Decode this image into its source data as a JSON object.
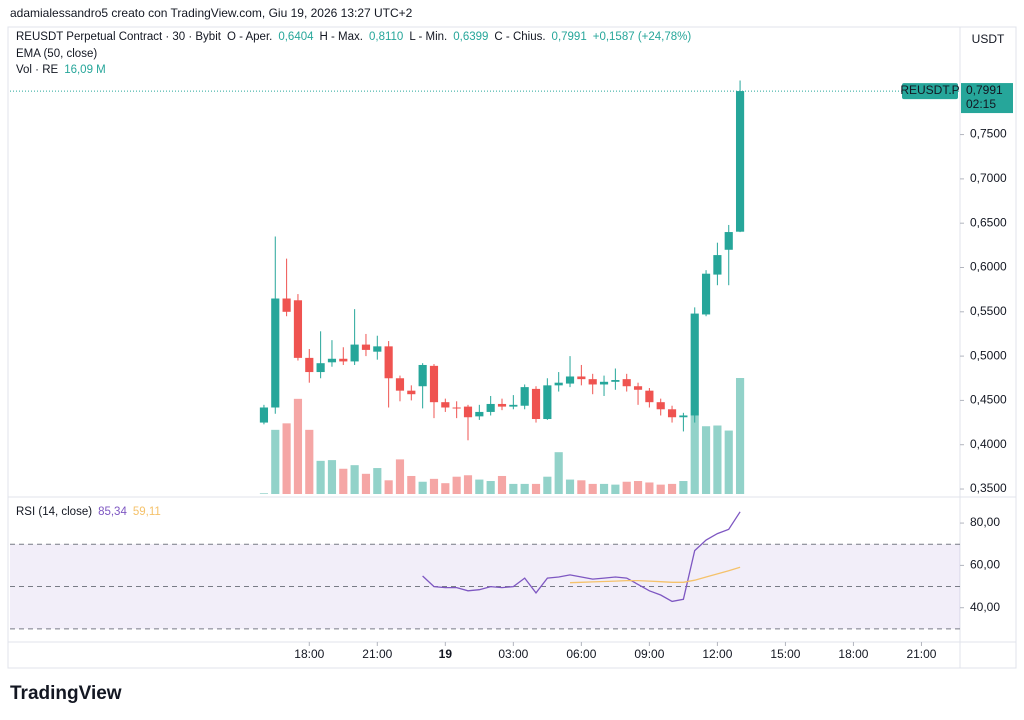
{
  "header": {
    "author_line": "adamialessandro5 creato con TradingView.com, Giu 19, 2026 13:27 UTC+2",
    "brand": "TradingView"
  },
  "chart_data": [
    {
      "type": "candlestick",
      "title": "REUSDT Perpetual Contract · 30 · Bybit",
      "ohlc_legend": [
        {
          "key": "O - Aper.",
          "value": "0,6404"
        },
        {
          "key": "H - Max.",
          "value": "0,8110"
        },
        {
          "key": "L - Min.",
          "value": "0,6399"
        },
        {
          "key": "C - Chius.",
          "value": "0,7991"
        }
      ],
      "change": "+0,1587 (+24,78%)",
      "indicator": "EMA (50, close)",
      "x": [
        16,
        16.5,
        17,
        17.5,
        18,
        18.5,
        19,
        19.5,
        20,
        20.5,
        21,
        21.5,
        22,
        22.5,
        23,
        23.5,
        24,
        24.5,
        25,
        25.5,
        26,
        26.5,
        27,
        27.5,
        28,
        28.5,
        29,
        29.5,
        30,
        30.5,
        31,
        31.5,
        32,
        32.5,
        33,
        33.5,
        34,
        34.5,
        35,
        35.5,
        36,
        36.5,
        37
      ],
      "xlim": [
        4.8,
        46.7
      ],
      "xticks": [
        {
          "value": 18,
          "label": "18:00"
        },
        {
          "value": 21,
          "label": "21:00"
        },
        {
          "value": 24,
          "label": "19"
        },
        {
          "value": 27,
          "label": "03:00"
        },
        {
          "value": 30,
          "label": "06:00"
        },
        {
          "value": 33,
          "label": "09:00"
        },
        {
          "value": 36,
          "label": "12:00"
        },
        {
          "value": 39,
          "label": "15:00"
        },
        {
          "value": 42,
          "label": "18:00"
        },
        {
          "value": 45,
          "label": "21:00"
        }
      ],
      "ylim": [
        0.341,
        0.8714
      ],
      "yticks": [
        {
          "value": 0.35,
          "label": "0,3500"
        },
        {
          "value": 0.4,
          "label": "0,4000"
        },
        {
          "value": 0.45,
          "label": "0,4500"
        },
        {
          "value": 0.5,
          "label": "0,5000"
        },
        {
          "value": 0.55,
          "label": "0,5500"
        },
        {
          "value": 0.6,
          "label": "0,6000"
        },
        {
          "value": 0.65,
          "label": "0,6500"
        },
        {
          "value": 0.7,
          "label": "0,7000"
        },
        {
          "value": 0.75,
          "label": "0,7500"
        }
      ],
      "y_unit": "USDT",
      "open": [
        0.425,
        0.442,
        0.565,
        0.563,
        0.498,
        0.482,
        0.493,
        0.497,
        0.494,
        0.513,
        0.505,
        0.511,
        0.475,
        0.461,
        0.466,
        0.489,
        0.448,
        0.442,
        0.443,
        0.432,
        0.437,
        0.446,
        0.443,
        0.444,
        0.463,
        0.429,
        0.467,
        0.469,
        0.477,
        0.474,
        0.468,
        0.471,
        0.474,
        0.466,
        0.461,
        0.448,
        0.44,
        0.431,
        0.433,
        0.547,
        0.592,
        0.62,
        0.6404
      ],
      "high": [
        0.445,
        0.635,
        0.61,
        0.57,
        0.508,
        0.528,
        0.518,
        0.51,
        0.553,
        0.525,
        0.523,
        0.517,
        0.478,
        0.467,
        0.492,
        0.491,
        0.452,
        0.449,
        0.445,
        0.445,
        0.455,
        0.452,
        0.456,
        0.468,
        0.466,
        0.475,
        0.482,
        0.5,
        0.49,
        0.48,
        0.478,
        0.486,
        0.48,
        0.47,
        0.464,
        0.452,
        0.444,
        0.436,
        0.555,
        0.597,
        0.628,
        0.648,
        0.811
      ],
      "low": [
        0.423,
        0.435,
        0.545,
        0.495,
        0.47,
        0.475,
        0.488,
        0.49,
        0.49,
        0.5,
        0.496,
        0.442,
        0.449,
        0.45,
        0.441,
        0.43,
        0.437,
        0.43,
        0.405,
        0.428,
        0.433,
        0.439,
        0.44,
        0.44,
        0.425,
        0.428,
        0.46,
        0.465,
        0.467,
        0.457,
        0.455,
        0.462,
        0.46,
        0.445,
        0.442,
        0.433,
        0.425,
        0.415,
        0.425,
        0.545,
        0.58,
        0.58,
        0.6399
      ],
      "close": [
        0.442,
        0.565,
        0.55,
        0.498,
        0.482,
        0.492,
        0.497,
        0.494,
        0.513,
        0.507,
        0.511,
        0.475,
        0.461,
        0.457,
        0.49,
        0.448,
        0.442,
        0.441,
        0.431,
        0.437,
        0.446,
        0.443,
        0.445,
        0.465,
        0.429,
        0.467,
        0.47,
        0.477,
        0.474,
        0.468,
        0.471,
        0.473,
        0.466,
        0.462,
        0.448,
        0.44,
        0.431,
        0.433,
        0.548,
        0.593,
        0.614,
        0.64,
        0.7991
      ],
      "up_color": "#26a69a",
      "down_color": "#ef5350",
      "volume": {
        "name": "Vol · RE",
        "value_label": "16,09 M",
        "up_color": "#92d2c9",
        "down_color": "#f5a6a5",
        "values": [
          0.1,
          8.9,
          9.8,
          13.2,
          8.9,
          4.6,
          4.7,
          3.5,
          4.0,
          2.8,
          3.6,
          1.9,
          4.8,
          2.5,
          1.7,
          2.1,
          1.5,
          2.4,
          2.6,
          2.0,
          1.8,
          2.5,
          1.4,
          1.4,
          1.4,
          2.4,
          5.8,
          2.0,
          1.9,
          1.4,
          1.4,
          1.3,
          1.7,
          1.8,
          1.6,
          1.3,
          1.4,
          1.8,
          10.9,
          9.4,
          9.5,
          8.8,
          16.09
        ]
      },
      "last_price": {
        "value": 0.7991,
        "label": "0,7991",
        "symbol": "REUSDT.P",
        "countdown": "02:15"
      }
    },
    {
      "type": "line",
      "title": "RSI (14, close)",
      "x": [
        16,
        16.5,
        17,
        17.5,
        18,
        18.5,
        19,
        19.5,
        20,
        20.5,
        21,
        21.5,
        22,
        22.5,
        23,
        23.5,
        24,
        24.5,
        25,
        25.5,
        26,
        26.5,
        27,
        27.5,
        28,
        28.5,
        29,
        29.5,
        30,
        30.5,
        31,
        31.5,
        32,
        32.5,
        33,
        33.5,
        34,
        34.5,
        35,
        35.5,
        36,
        36.5,
        37
      ],
      "xlim": [
        4.8,
        46.7
      ],
      "ylim": [
        23.8,
        90.9
      ],
      "yticks": [
        {
          "value": 80,
          "label": "80,00"
        },
        {
          "value": 60,
          "label": "60,00"
        },
        {
          "value": 40,
          "label": "40,00"
        }
      ],
      "levels": [
        70,
        50,
        30
      ],
      "band": [
        30,
        70
      ],
      "band_color": "#7e57c2",
      "series": [
        {
          "color": "#7e57c2",
          "value_label": "85,34",
          "values": [
            null,
            null,
            null,
            null,
            null,
            null,
            null,
            null,
            null,
            null,
            null,
            null,
            null,
            null,
            55,
            50,
            49.5,
            49.5,
            48,
            48.5,
            50,
            49.5,
            50,
            54,
            47,
            54,
            54.5,
            55.5,
            54.5,
            53.5,
            54,
            54.5,
            54,
            51,
            48,
            46,
            43,
            44,
            67,
            72,
            75,
            77,
            85.34
          ]
        },
        {
          "color": "#f5c26b",
          "value_label": "59,11",
          "values": [
            null,
            null,
            null,
            null,
            null,
            null,
            null,
            null,
            null,
            null,
            null,
            null,
            null,
            null,
            null,
            null,
            null,
            null,
            null,
            null,
            null,
            null,
            null,
            null,
            null,
            null,
            null,
            51.8,
            52,
            52.2,
            52.4,
            52.6,
            52.8,
            52.8,
            52.6,
            52.3,
            52,
            52,
            53,
            54.5,
            56,
            57.5,
            59.11
          ]
        }
      ]
    }
  ]
}
